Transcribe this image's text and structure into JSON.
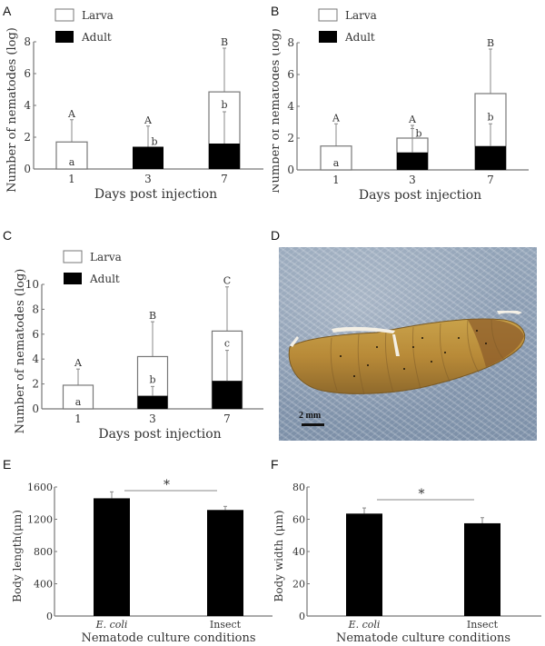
{
  "panels": {
    "A": {
      "label": "A"
    },
    "B": {
      "label": "B"
    },
    "C": {
      "label": "C"
    },
    "D": {
      "label": "D",
      "scale_bar": "2 mm",
      "description": "Photograph of insect larva with emerging nematodes"
    },
    "E": {
      "label": "E"
    },
    "F": {
      "label": "F"
    }
  },
  "legend": {
    "larva": "Larva",
    "adult": "Adult"
  },
  "axis_text": {
    "nematode_ylabel": "Number of nematodes (log)",
    "days_xlabel": "Days post injection",
    "culture_xlabel": "Nematode culture conditions",
    "length_ylabel": "Body length(μm)",
    "width_ylabel": "Body width (μm)",
    "ecoli": "E. coli",
    "insect": "Insect",
    "sig": "*"
  },
  "chart_data": [
    {
      "panel": "A",
      "type": "bar",
      "stacked": true,
      "categories": [
        "1",
        "3",
        "7"
      ],
      "series": [
        {
          "name": "Adult",
          "values": [
            0,
            1.4,
            1.6
          ],
          "color": "#000000"
        },
        {
          "name": "Larva",
          "values": [
            1.7,
            0,
            3.25
          ],
          "color": "#ffffff"
        }
      ],
      "totals": [
        1.7,
        1.4,
        4.85
      ],
      "total_error_top": [
        3.1,
        2.7,
        7.6
      ],
      "adult_error_top": [
        null,
        null,
        3.6
      ],
      "total_letters": [
        "A",
        "A",
        "B"
      ],
      "adult_letters": [
        "a",
        "b",
        "b"
      ],
      "xlabel": "Days post injection",
      "ylabel": "Number of nematodes (log)",
      "yticks": [
        0,
        2,
        4,
        6,
        8
      ],
      "ylim": [
        0,
        8
      ],
      "legend": [
        "Larva",
        "Adult"
      ]
    },
    {
      "panel": "B",
      "type": "bar",
      "stacked": true,
      "categories": [
        "1",
        "3",
        "7"
      ],
      "series": [
        {
          "name": "Adult",
          "values": [
            0,
            1.1,
            1.5
          ],
          "color": "#000000"
        },
        {
          "name": "Larva",
          "values": [
            1.5,
            0.9,
            3.3
          ],
          "color": "#ffffff"
        }
      ],
      "totals": [
        1.5,
        2.0,
        4.8
      ],
      "total_error_top": [
        2.9,
        2.8,
        7.6
      ],
      "adult_error_top": [
        null,
        2.6,
        2.9
      ],
      "total_letters": [
        "A",
        "A",
        "B"
      ],
      "adult_letters": [
        "a",
        "b",
        "b"
      ],
      "xlabel": "Days post injection",
      "ylabel": "Number of nematodes (log)",
      "yticks": [
        0,
        2,
        4,
        6,
        8
      ],
      "ylim": [
        0,
        8
      ],
      "legend": [
        "Larva",
        "Adult"
      ]
    },
    {
      "panel": "C",
      "type": "bar",
      "stacked": true,
      "categories": [
        "1",
        "3",
        "7"
      ],
      "series": [
        {
          "name": "Adult",
          "values": [
            0,
            1.05,
            2.25
          ],
          "color": "#000000"
        },
        {
          "name": "Larva",
          "values": [
            1.9,
            3.15,
            4.0
          ],
          "color": "#ffffff"
        }
      ],
      "totals": [
        1.9,
        4.2,
        6.25
      ],
      "total_error_top": [
        3.2,
        7.0,
        9.8
      ],
      "adult_error_top": [
        null,
        1.8,
        4.7
      ],
      "total_letters": [
        "A",
        "B",
        "C"
      ],
      "adult_letters": [
        "a",
        "b",
        "c"
      ],
      "xlabel": "Days post injection",
      "ylabel": "Number of nematodes (log)",
      "yticks": [
        0,
        2,
        4,
        6,
        8,
        10
      ],
      "ylim": [
        0,
        10
      ],
      "legend": [
        "Larva",
        "Adult"
      ]
    },
    {
      "panel": "E",
      "type": "bar",
      "categories": [
        "E. coli",
        "Insect"
      ],
      "values": [
        1460,
        1315
      ],
      "error_top": [
        1540,
        1360
      ],
      "significance": "*",
      "xlabel": "Nematode culture conditions",
      "ylabel": "Body length(μm)",
      "yticks": [
        0,
        400,
        800,
        1200,
        1600
      ],
      "ylim": [
        0,
        1600
      ]
    },
    {
      "panel": "F",
      "type": "bar",
      "categories": [
        "E. coli",
        "Insect"
      ],
      "values": [
        63.5,
        57.5
      ],
      "error_top": [
        67,
        61
      ],
      "significance": "*",
      "xlabel": "Nematode culture conditions",
      "ylabel": "Body width (μm)",
      "yticks": [
        0,
        20,
        40,
        60,
        80
      ],
      "ylim": [
        0,
        80
      ]
    }
  ]
}
